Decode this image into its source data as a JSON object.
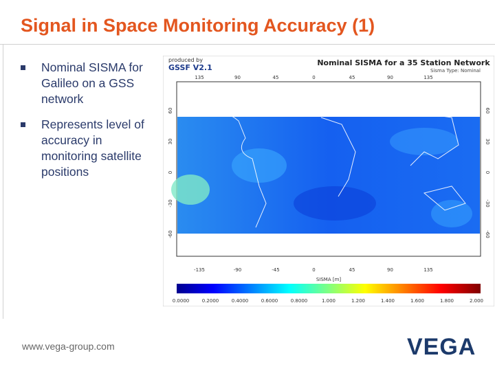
{
  "header": {
    "title": "Signal in Space Monitoring Accuracy (1)"
  },
  "bullets": [
    "Nominal SISMA for Galileo on a GSS network",
    "Represents level of accuracy in monitoring satellite positions"
  ],
  "figure": {
    "producer": "produced by",
    "software": "GSSF V2.1",
    "title": "Nominal SISMA for a 35 Station Network",
    "subtitle": "Sisma Type: Nominal",
    "top_ticks": [
      "135",
      "90",
      "45",
      "0",
      "45",
      "90",
      "135"
    ],
    "bottom_ticks": [
      "-135",
      "-90",
      "-45",
      "0",
      "45",
      "90",
      "135"
    ],
    "side_ticks": [
      "60",
      "30",
      "0",
      "-30",
      "-60"
    ],
    "colorbar_label": "SISMA [m]",
    "colorbar_ticks": [
      "0.0000",
      "0.2000",
      "0.4000",
      "0.6000",
      "0.8000",
      "1.000",
      "1.200",
      "1.400",
      "1.600",
      "1.800",
      "2.000"
    ]
  },
  "footer": {
    "url": "www.vega-group.com",
    "logo": "VEGA"
  }
}
